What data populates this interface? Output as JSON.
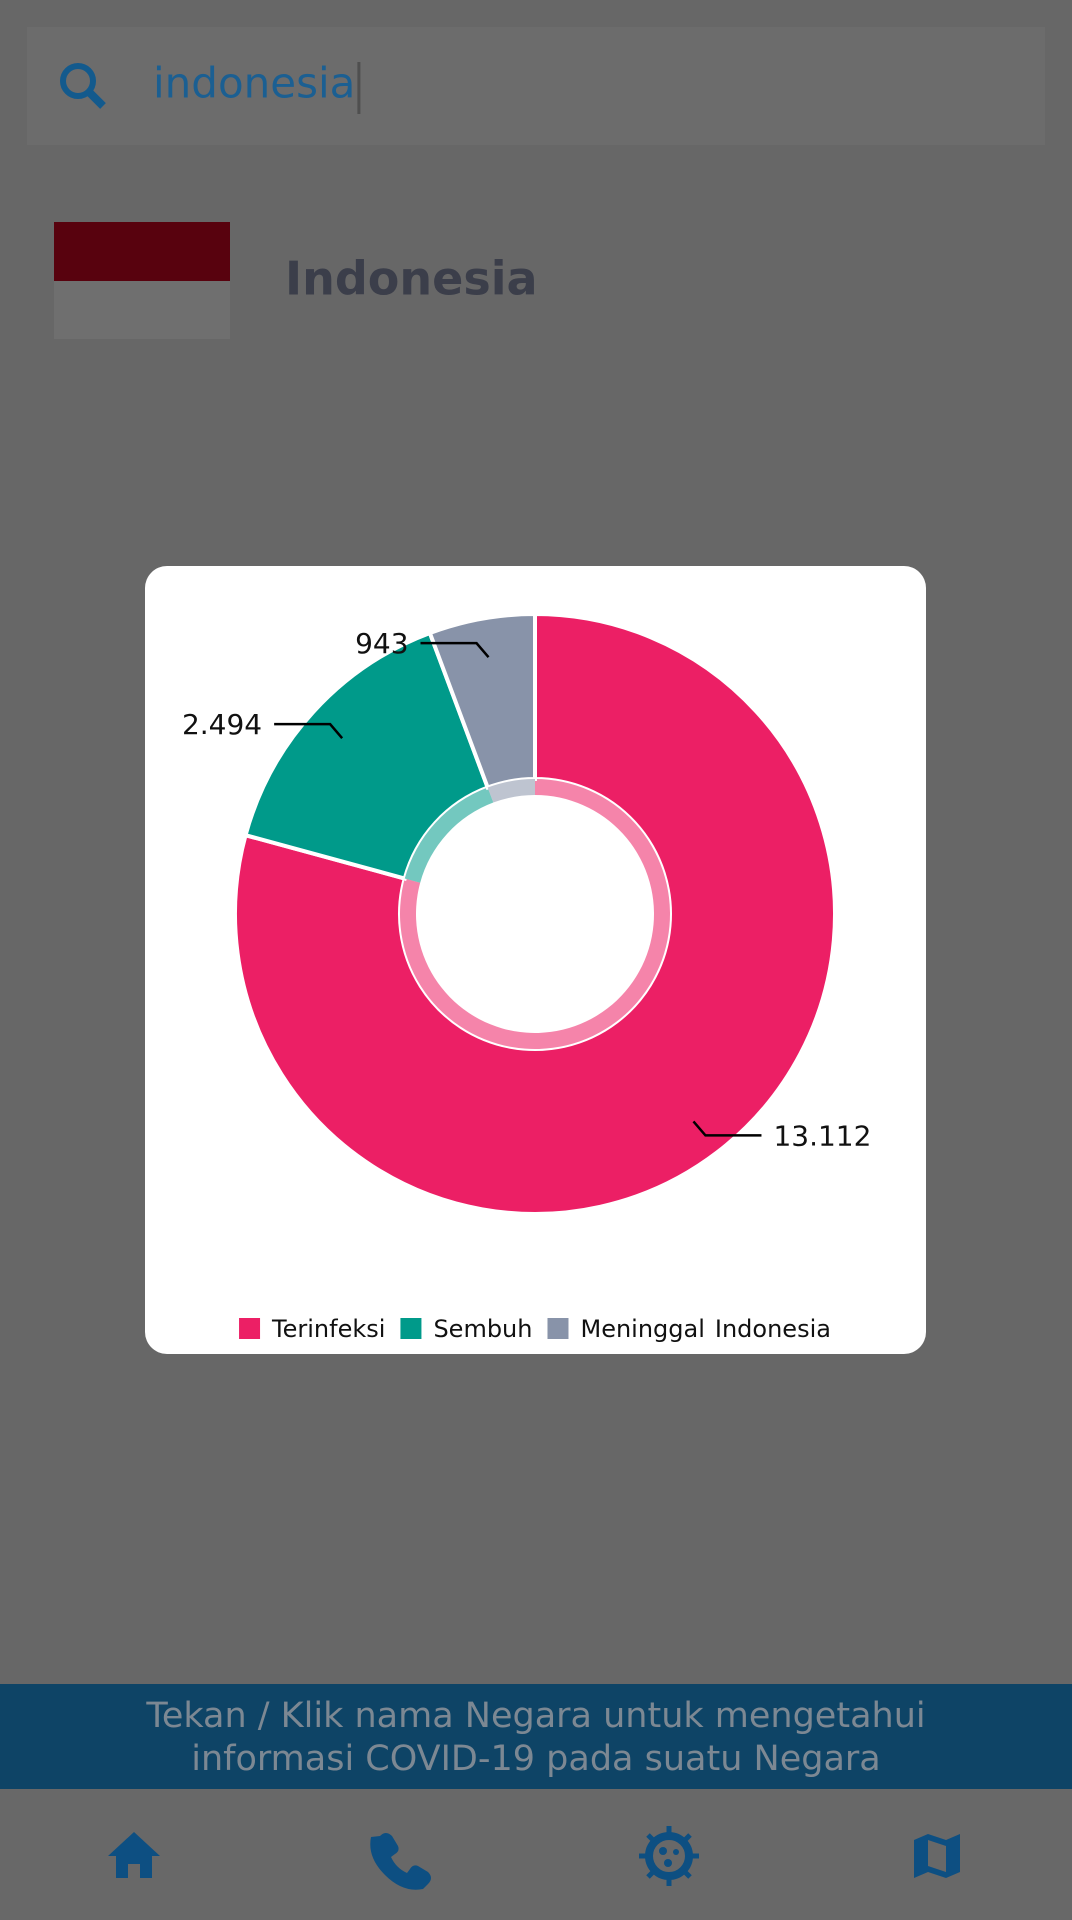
{
  "search": {
    "query": "indonesia"
  },
  "country": {
    "name": "Indonesia"
  },
  "chart_data": {
    "type": "pie",
    "categories": [
      "Terinfeksi",
      "Sembuh",
      "Meninggal"
    ],
    "values": [
      13112,
      2494,
      943
    ],
    "value_labels": [
      "13.112",
      "2.494",
      "943"
    ],
    "colors": [
      "#ec1f65",
      "#009a8a",
      "#8893a9"
    ],
    "label": "Indonesia"
  },
  "banner": {
    "lines": [
      "Tekan / Klik nama Negara untuk mengetahui",
      "informasi COVID-19 pada suatu Negara"
    ]
  }
}
